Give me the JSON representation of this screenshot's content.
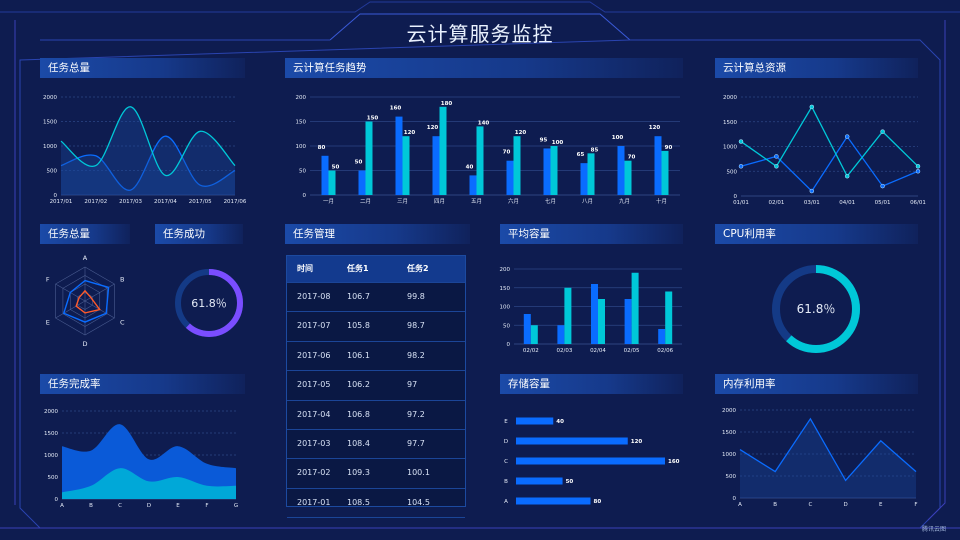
{
  "title": "云计算服务监控",
  "colors": {
    "background": "#0e1c50",
    "blue": "#0a6cff",
    "cyan": "#00c8d8",
    "purple": "#7a4dff",
    "orange": "#ff5a2a",
    "frame": "#2a4fc8"
  },
  "panels": {
    "p1": "任务总量",
    "p2": "云计算任务趋势",
    "p3": "云计算总资源",
    "p4": "任务总量",
    "p5": "任务成功",
    "p6": "任务管理",
    "p7": "平均容量",
    "p8": "CPU利用率",
    "p9": "任务完成率",
    "p10": "存储容量",
    "p11": "内存利用率"
  },
  "table": {
    "headers": [
      "时间",
      "任务1",
      "任务2"
    ],
    "rows": [
      [
        "2017-08",
        "106.7",
        "99.8"
      ],
      [
        "2017-07",
        "105.8",
        "98.7"
      ],
      [
        "2017-06",
        "106.1",
        "98.2"
      ],
      [
        "2017-05",
        "106.2",
        "97"
      ],
      [
        "2017-04",
        "106.8",
        "97.2"
      ],
      [
        "2017-03",
        "108.4",
        "97.7"
      ],
      [
        "2017-02",
        "109.3",
        "100.1"
      ],
      [
        "2017-01",
        "108.5",
        "104.5"
      ]
    ]
  },
  "watermark": "腾讯云图",
  "chart_data": [
    {
      "id": "task-total-line",
      "type": "area",
      "smooth": true,
      "categories": [
        "2017/01",
        "2017/02",
        "2017/03",
        "2017/04",
        "2017/05",
        "2017/06"
      ],
      "series": [
        {
          "values": [
            600,
            800,
            100,
            1200,
            200,
            500
          ],
          "color": "#0a6cff"
        },
        {
          "values": [
            1100,
            600,
            1800,
            400,
            1300,
            600
          ],
          "color": "#00c8d8"
        }
      ],
      "yticks": [
        0,
        500,
        1000,
        1500,
        2000
      ],
      "ylim": [
        0,
        2000
      ],
      "grid": true
    },
    {
      "id": "cloud-task-trend",
      "type": "bar",
      "categories": [
        "一月",
        "二月",
        "三月",
        "四月",
        "五月",
        "六月",
        "七月",
        "八月",
        "九月",
        "十月"
      ],
      "series": [
        {
          "values": [
            80,
            50,
            160,
            120,
            40,
            70,
            95,
            65,
            100,
            120
          ],
          "color": "#0a6cff"
        },
        {
          "values": [
            50,
            150,
            120,
            180,
            140,
            120,
            100,
            85,
            70,
            90
          ],
          "color": "#00c8d8"
        }
      ],
      "yticks": [
        0,
        50,
        100,
        150,
        200
      ],
      "ylim": [
        0,
        200
      ],
      "data_labels": true,
      "grid": true
    },
    {
      "id": "cloud-total-resource",
      "type": "line",
      "categories": [
        "01/01",
        "02/01",
        "03/01",
        "04/01",
        "05/01",
        "06/01"
      ],
      "series": [
        {
          "values": [
            600,
            800,
            100,
            1200,
            200,
            500
          ],
          "color": "#0a6cff"
        },
        {
          "values": [
            1100,
            600,
            1800,
            400,
            1300,
            600
          ],
          "color": "#00c8d8"
        }
      ],
      "yticks": [
        0,
        500,
        1000,
        1500,
        2000
      ],
      "ylim": [
        0,
        2000
      ],
      "markers": true,
      "grid": true
    },
    {
      "id": "task-total-radar",
      "type": "radar",
      "indicators": [
        "A",
        "B",
        "C",
        "D",
        "E",
        "F"
      ],
      "max": 100,
      "series": [
        {
          "values": [
            60,
            80,
            72,
            62,
            72,
            50
          ],
          "color": "#0a6cff"
        },
        {
          "values": [
            30,
            20,
            50,
            35,
            30,
            20
          ],
          "color": "#ff5a2a"
        }
      ]
    },
    {
      "id": "task-success-gauge",
      "type": "pie",
      "value": 61.8,
      "label": "61.8％",
      "color": "#7a4dff",
      "track": "#143a86"
    },
    {
      "id": "avg-capacity",
      "type": "bar",
      "categories": [
        "02/02",
        "02/03",
        "02/04",
        "02/05",
        "02/06"
      ],
      "series": [
        {
          "values": [
            80,
            50,
            160,
            120,
            40
          ],
          "color": "#0a6cff"
        },
        {
          "values": [
            50,
            150,
            120,
            190,
            140
          ],
          "color": "#00c8d8"
        }
      ],
      "yticks": [
        0,
        50,
        100,
        150,
        200
      ],
      "ylim": [
        0,
        200
      ],
      "grid": true
    },
    {
      "id": "cpu-usage-gauge",
      "type": "pie",
      "value": 61.8,
      "label": "61.8％",
      "color": "#00c8d8",
      "track": "#143a86"
    },
    {
      "id": "task-completion-rate",
      "type": "area",
      "stacked": true,
      "smooth": true,
      "categories": [
        "A",
        "B",
        "C",
        "D",
        "E",
        "F",
        "G"
      ],
      "series": [
        {
          "values": [
            150,
            300,
            700,
            400,
            500,
            300,
            300
          ],
          "color": "#00a8d8"
        },
        {
          "values": [
            1050,
            800,
            1000,
            500,
            700,
            500,
            400
          ],
          "color": "#0a5ad8"
        }
      ],
      "yticks": [
        0,
        500,
        1000,
        1500,
        2000
      ],
      "ylim": [
        0,
        2000
      ],
      "grid": true
    },
    {
      "id": "storage-capacity",
      "type": "bar",
      "orientation": "horizontal",
      "categories": [
        "A",
        "B",
        "C",
        "D",
        "E"
      ],
      "values": [
        80,
        50,
        160,
        120,
        40
      ],
      "color": "#0a6cff",
      "data_labels": true,
      "xlim": [
        0,
        160
      ]
    },
    {
      "id": "memory-usage",
      "type": "area",
      "categories": [
        "A",
        "B",
        "C",
        "D",
        "E",
        "F"
      ],
      "series": [
        {
          "values": [
            1100,
            600,
            1800,
            400,
            1300,
            600
          ],
          "color": "#0a6cff"
        }
      ],
      "yticks": [
        0,
        500,
        1000,
        1500,
        2000
      ],
      "ylim": [
        0,
        2000
      ],
      "grid": true
    }
  ]
}
